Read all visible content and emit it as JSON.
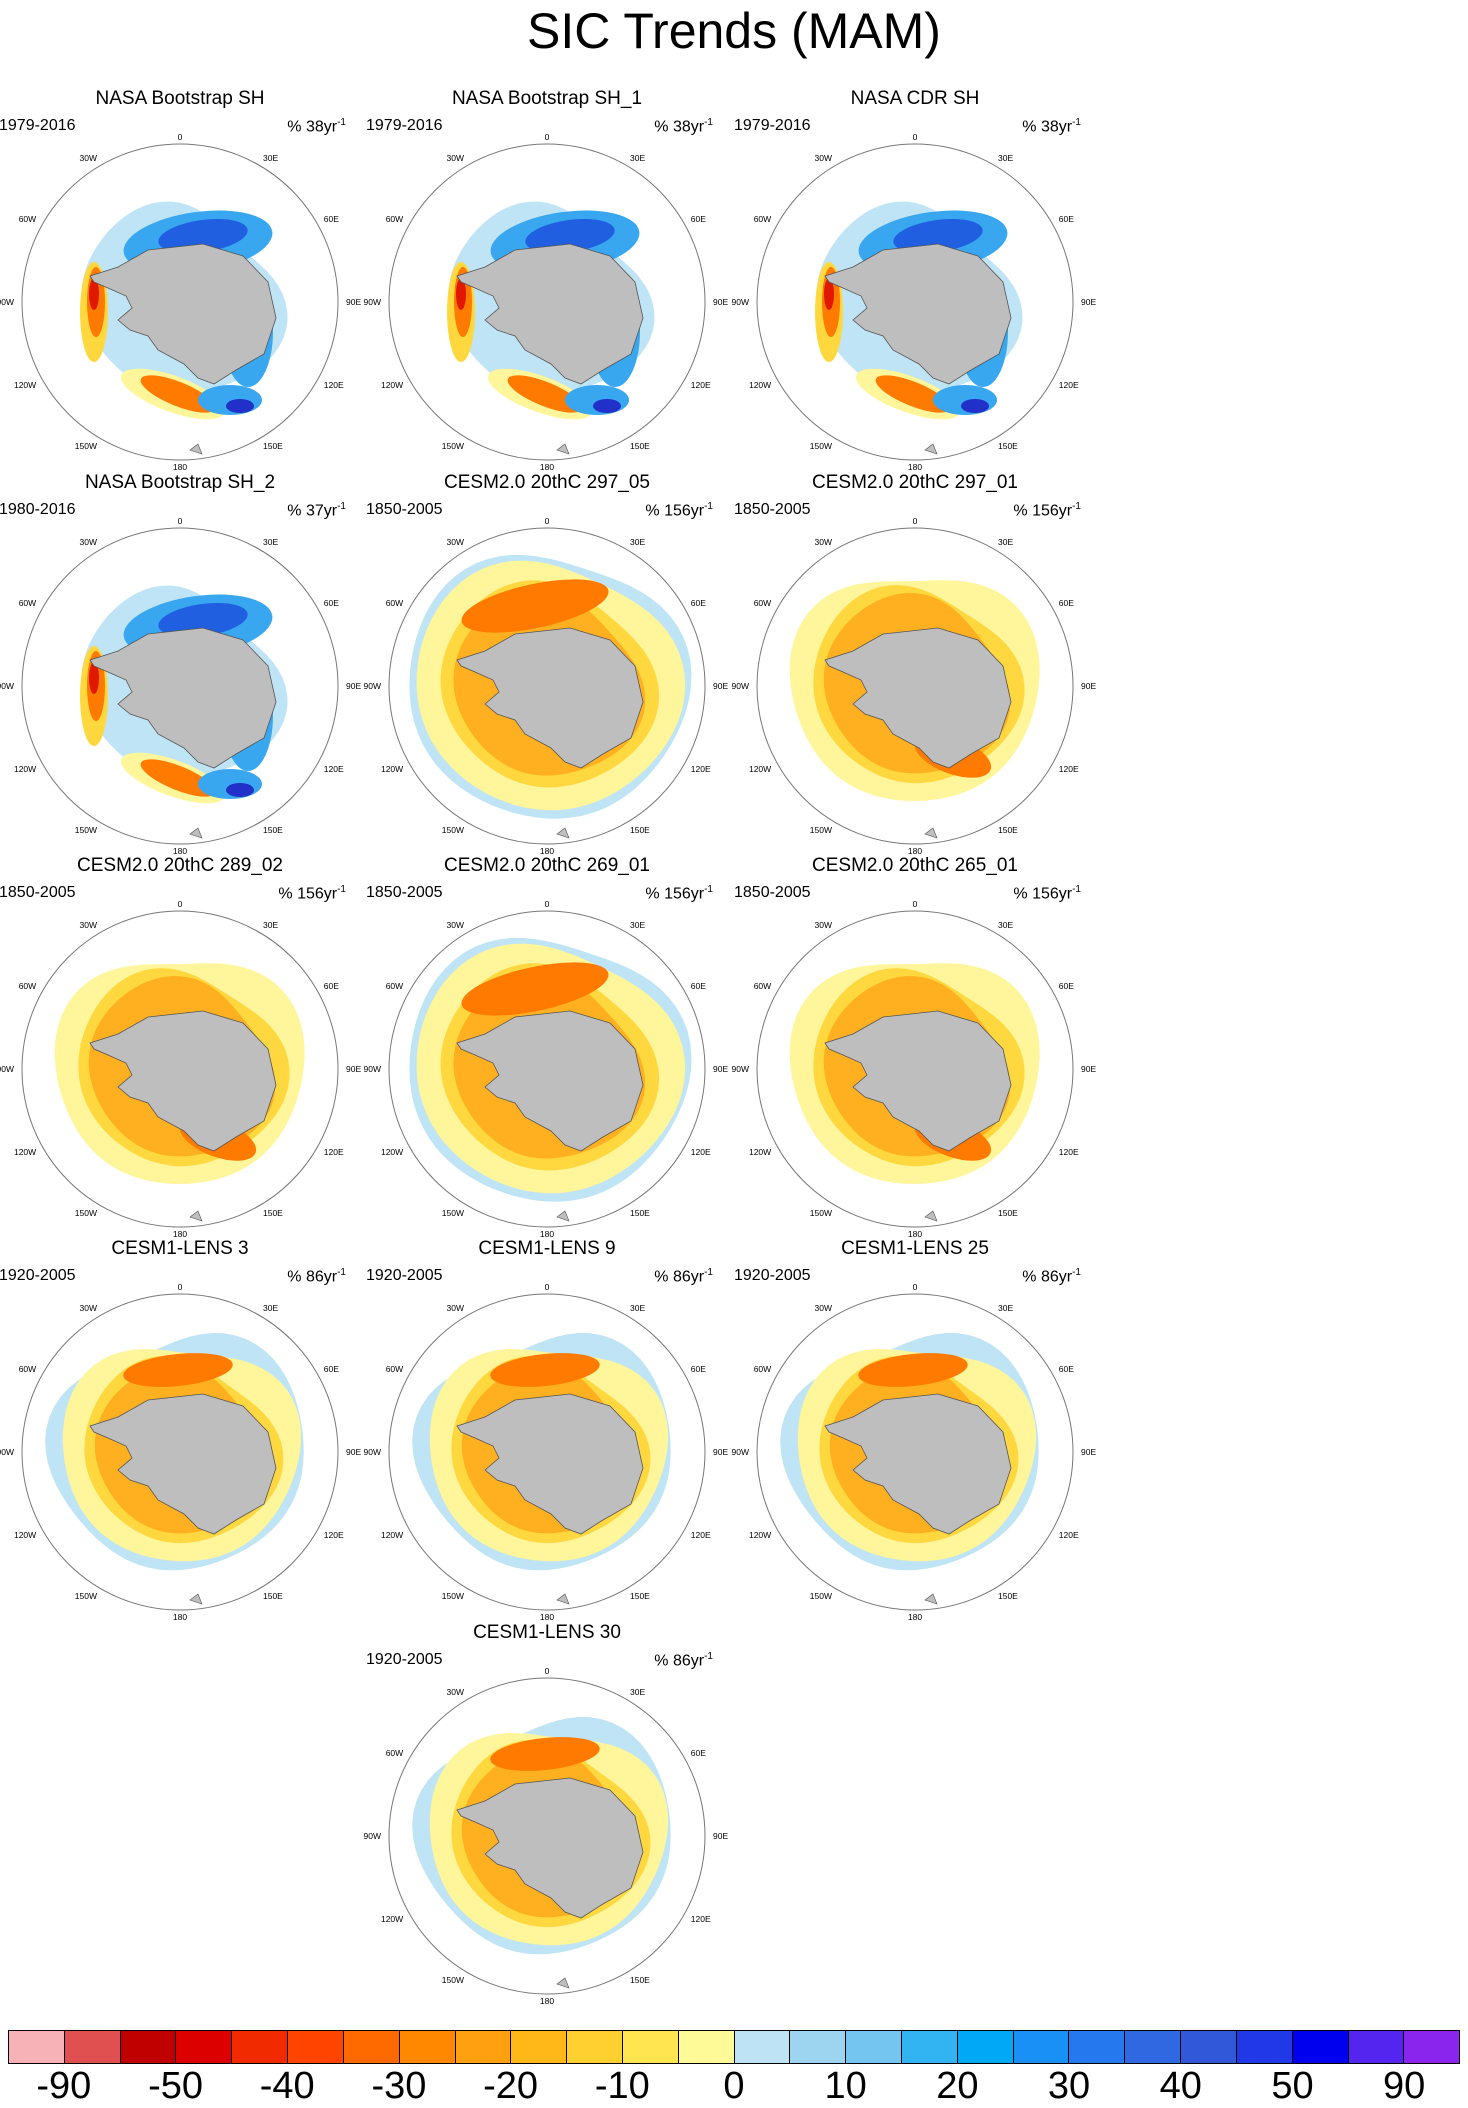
{
  "figure": {
    "title": "SIC Trends (MAM)"
  },
  "map_labels": {
    "top": "0",
    "bottom": "180",
    "right": [
      "30E",
      "60E",
      "90E",
      "120E",
      "150E"
    ],
    "left": [
      "30W",
      "60W",
      "90W",
      "120W",
      "150W"
    ]
  },
  "panels": [
    {
      "title": "NASA Bootstrap SH",
      "period": "1979-2016",
      "units": "% 38yr",
      "exp": "-1",
      "pattern": "obsA"
    },
    {
      "title": "NASA Bootstrap SH_1",
      "period": "1979-2016",
      "units": "% 38yr",
      "exp": "-1",
      "pattern": "obsA"
    },
    {
      "title": "NASA CDR SH",
      "period": "1979-2016",
      "units": "% 38yr",
      "exp": "-1",
      "pattern": "obsA"
    },
    {
      "title": "NASA Bootstrap SH_2",
      "period": "1980-2016",
      "units": "% 37yr",
      "exp": "-1",
      "pattern": "obsB"
    },
    {
      "title": "CESM2.0 20thC 297_05",
      "period": "1850-2005",
      "units": "% 156yr",
      "exp": "-1",
      "pattern": "cesm2a"
    },
    {
      "title": "CESM2.0 20thC 297_01",
      "period": "1850-2005",
      "units": "% 156yr",
      "exp": "-1",
      "pattern": "cesm2b"
    },
    {
      "title": "CESM2.0 20thC 289_02",
      "period": "1850-2005",
      "units": "% 156yr",
      "exp": "-1",
      "pattern": "cesm2b"
    },
    {
      "title": "CESM2.0 20thC 269_01",
      "period": "1850-2005",
      "units": "% 156yr",
      "exp": "-1",
      "pattern": "cesm2a"
    },
    {
      "title": "CESM2.0 20thC 265_01",
      "period": "1850-2005",
      "units": "% 156yr",
      "exp": "-1",
      "pattern": "cesm2b"
    },
    {
      "title": "CESM1-LENS 3",
      "period": "1920-2005",
      "units": "% 86yr",
      "exp": "-1",
      "pattern": "lens"
    },
    {
      "title": "CESM1-LENS 9",
      "period": "1920-2005",
      "units": "% 86yr",
      "exp": "-1",
      "pattern": "lens"
    },
    {
      "title": "CESM1-LENS 25",
      "period": "1920-2005",
      "units": "% 86yr",
      "exp": "-1",
      "pattern": "lens"
    },
    {
      "title": "CESM1-LENS 30",
      "period": "1920-2005",
      "units": "% 86yr",
      "exp": "-1",
      "pattern": "lens"
    }
  ],
  "colorbar": {
    "colors": [
      "#f7b2b8",
      "#e05050",
      "#c00000",
      "#dd0000",
      "#f22a00",
      "#ff4400",
      "#ff6a00",
      "#ff8800",
      "#ffa010",
      "#ffb818",
      "#ffd030",
      "#ffe650",
      "#fffa98",
      "#bde3f5",
      "#9dd5f0",
      "#74c6f0",
      "#33b4f2",
      "#00a8f5",
      "#1890f5",
      "#2678ef",
      "#3068e2",
      "#3058d8",
      "#2038e8",
      "#0000ee",
      "#5525f0",
      "#8a25ee"
    ],
    "labels": [
      "-90",
      "-50",
      "-40",
      "-30",
      "-20",
      "-10",
      "0",
      "10",
      "20",
      "30",
      "40",
      "50",
      "90"
    ]
  },
  "colors": {
    "land": "#bebebe",
    "land_edge": "#555555",
    "ring": "#777777",
    "red": "#e01800",
    "orange": "#ff7a00",
    "lightorange": "#ffb020",
    "yellow": "#ffd840",
    "paleyellow": "#fff59a",
    "lightblue": "#bfe4f6",
    "blue": "#39a6f0",
    "darkblue": "#1f5fe0",
    "navy": "#2030c8"
  }
}
